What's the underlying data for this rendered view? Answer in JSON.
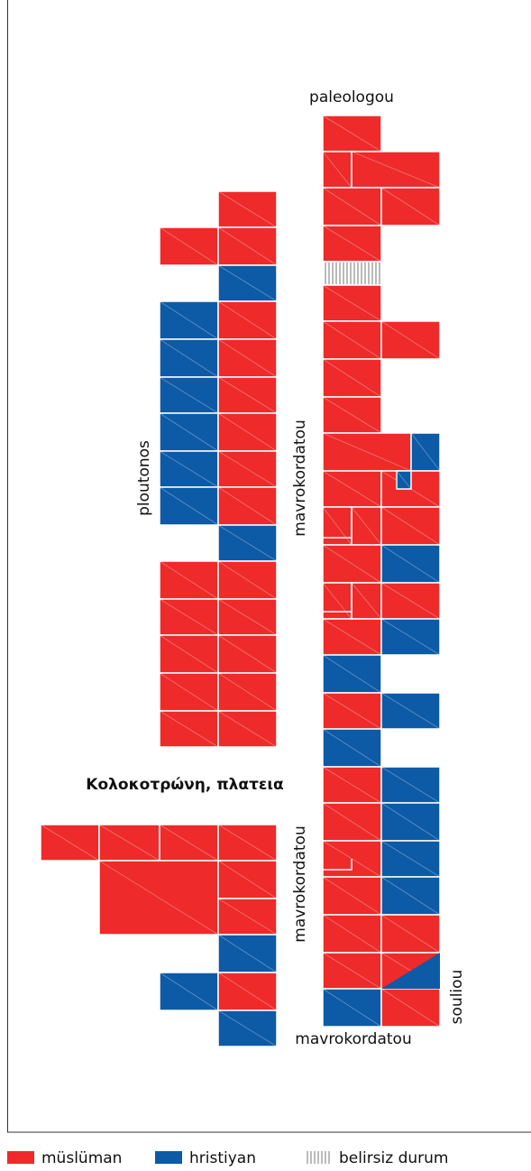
{
  "labels": {
    "paleologou": "paleologou",
    "ploutonos": "ploutonos",
    "mavrokordatou_top": "mavrokordatou",
    "square": "Κολοκοτρώνη, πλατεια",
    "mavrokordatou_mid": "mavrokordatou",
    "souliou": "souliou",
    "mavrokordatou_bottom": "mavrokordatou"
  },
  "legend": [
    {
      "label": "müslüman",
      "color": "#ee2a2a"
    },
    {
      "label": "hristiyan",
      "color": "#0d5aa7"
    },
    {
      "label": "belirsiz durum",
      "color": "#bbbbbb"
    }
  ]
}
